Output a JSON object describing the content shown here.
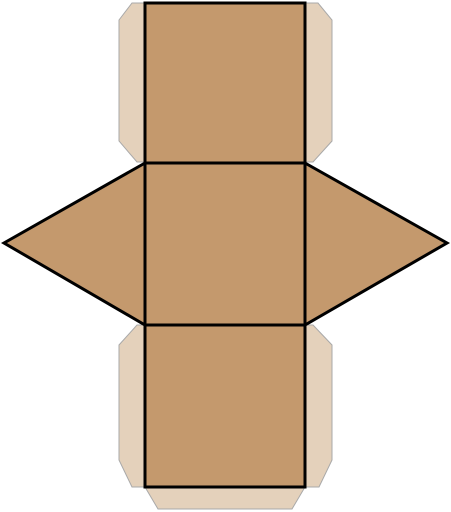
{
  "diagram": {
    "type": "net-of-triangular-prism",
    "faces": [
      {
        "name": "rectangle-top",
        "shape": "rectangle"
      },
      {
        "name": "rectangle-middle",
        "shape": "rectangle"
      },
      {
        "name": "rectangle-bottom",
        "shape": "rectangle"
      },
      {
        "name": "triangle-left",
        "shape": "triangle"
      },
      {
        "name": "triangle-right",
        "shape": "triangle"
      }
    ],
    "glue_tabs": 5,
    "colors": {
      "face_fill": "#c4996d",
      "tab_fill": "#e4d1bb",
      "outline": "#000000",
      "tab_outline": "#a9a9a9",
      "background": "#ffffff"
    }
  }
}
